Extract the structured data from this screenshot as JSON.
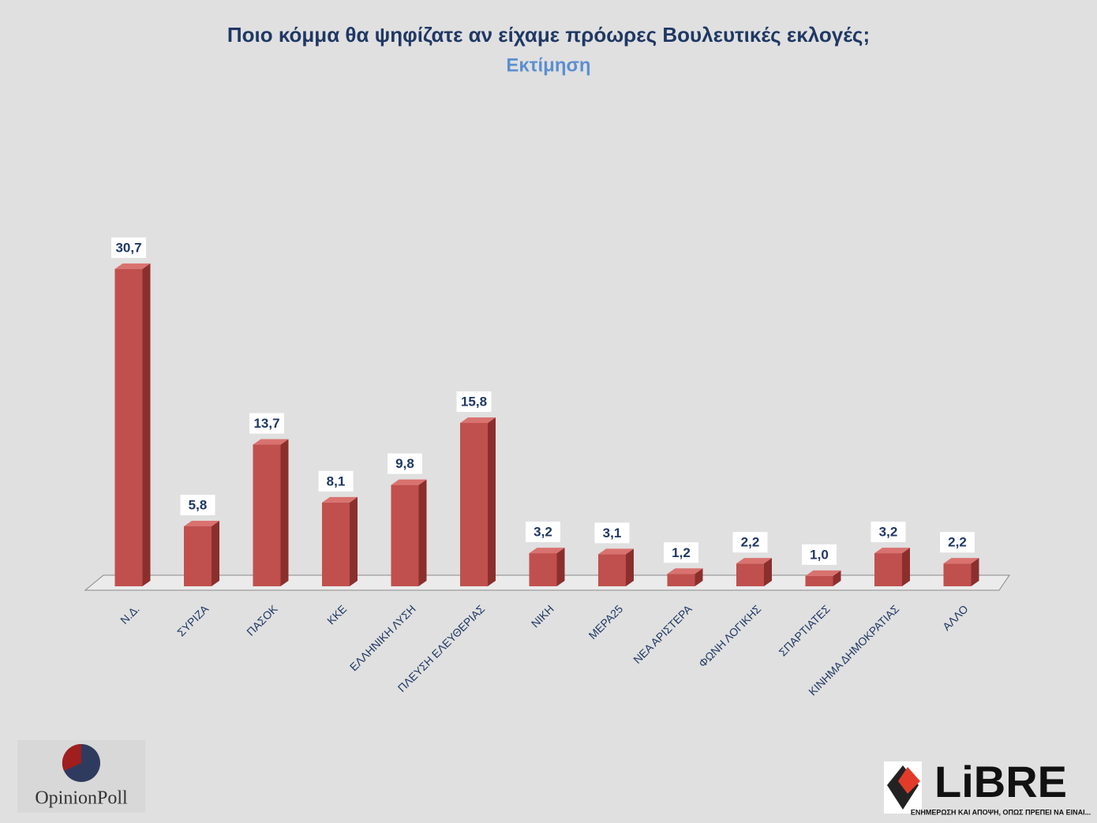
{
  "chart_data": {
    "type": "bar3d",
    "title": "Ποιο κόμμα θα ψηφίζατε αν είχαμε πρόωρες Βουλευτικές εκλογές;",
    "subtitle": "Εκτίμηση",
    "categories": [
      "Ν.Δ.",
      "ΣΥΡΙΖΑ",
      "ΠΑΣΟΚ",
      "ΚΚΕ",
      "ΕΛΛΗΝΙΚΗ ΛΥΣΗ",
      "ΠΛΕΥΣΗ ΕΛΕΥΘΕΡΙΑΣ",
      "ΝΙΚΗ",
      "ΜΕΡΑ25",
      "ΝΕΑ ΑΡΙΣΤΕΡΑ",
      "ΦΩΝΗ ΛΟΓΙΚΗΣ",
      "ΣΠΑΡΤΙΑΤΕΣ",
      "ΚΙΝΗΜΑ ΔΗΜΟΚΡΑΤΙΑΣ",
      "ΑΛΛΟ"
    ],
    "values": [
      30.7,
      5.8,
      13.7,
      8.1,
      9.8,
      15.8,
      3.2,
      3.1,
      1.2,
      2.2,
      1.0,
      3.2,
      2.2
    ],
    "value_labels": [
      "30,7",
      "5,8",
      "13,7",
      "8,1",
      "9,8",
      "15,8",
      "3,2",
      "3,1",
      "1,2",
      "2,2",
      "1,0",
      "3,2",
      "2,2"
    ],
    "color": "#c0504d"
  },
  "logos": {
    "left": "OpinionPoll",
    "right": "LiBRE",
    "right_tagline": "ΕΝΗΜΕΡΩΣΗ ΚΑΙ ΑΠΟΨΗ, ΟΠΩΣ ΠΡΕΠΕΙ ΝΑ ΕΙΝΑΙ..."
  }
}
